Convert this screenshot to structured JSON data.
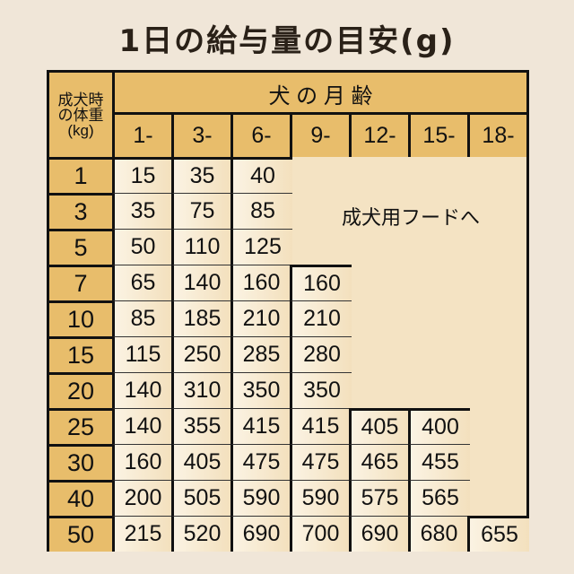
{
  "title": "1日の給与量の目安(g)",
  "corner_label": "成犬時の体重(kg)",
  "age_header": "犬 の 月 齢",
  "ages": [
    "1-",
    "3-",
    "6-",
    "9-",
    "12-",
    "15-",
    "18-"
  ],
  "weights": [
    "1",
    "3",
    "5",
    "7",
    "10",
    "15",
    "20",
    "25",
    "30",
    "40",
    "50"
  ],
  "values": [
    [
      "15",
      "35",
      "40"
    ],
    [
      "35",
      "75",
      "85"
    ],
    [
      "50",
      "110",
      "125"
    ],
    [
      "65",
      "140",
      "160",
      "160"
    ],
    [
      "85",
      "185",
      "210",
      "210"
    ],
    [
      "115",
      "250",
      "285",
      "280"
    ],
    [
      "140",
      "310",
      "350",
      "350"
    ],
    [
      "140",
      "355",
      "415",
      "415",
      "405",
      "400"
    ],
    [
      "160",
      "405",
      "475",
      "475",
      "465",
      "455"
    ],
    [
      "200",
      "505",
      "590",
      "590",
      "575",
      "565"
    ],
    [
      "215",
      "520",
      "690",
      "700",
      "690",
      "680",
      "655"
    ]
  ],
  "adult_food_note": "成犬用フードへ",
  "colors": {
    "header": "#e8bd6b",
    "cell": "#f5e7cc",
    "background": "#f0e6d8"
  }
}
